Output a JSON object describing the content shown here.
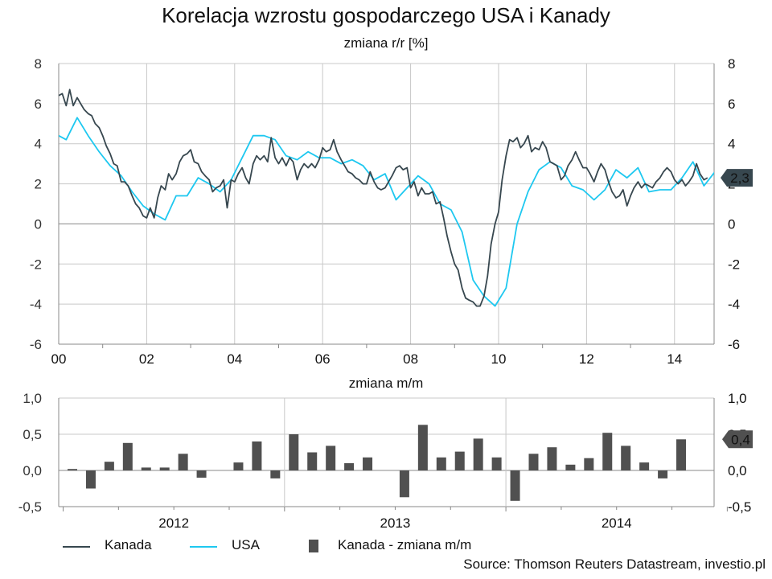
{
  "title": "Korelacja wzrostu gospodarczego USA i Kanady",
  "subtitle_top": "zmiana r/r [%]",
  "subtitle_bottom": "zmiana m/m",
  "source": "Source: Thomson Reuters Datastream, investio.pl",
  "colors": {
    "kanada": "#37474f",
    "usa": "#1ec8f0",
    "bars": "#505050",
    "grid": "#c8c8c8",
    "axis": "#888888",
    "callout": "#37474f"
  },
  "legend": [
    {
      "label": "Kanada",
      "kind": "line",
      "color": "#37474f"
    },
    {
      "label": "USA",
      "kind": "line",
      "color": "#1ec8f0"
    },
    {
      "label": "Kanada - zmiana m/m",
      "kind": "box",
      "color": "#505050"
    }
  ],
  "chart_data": [
    {
      "type": "line",
      "title": "Korelacja wzrostu gospodarczego USA i Kanady",
      "subtitle": "zmiana r/r [%]",
      "xlabel": "",
      "ylabel": "",
      "x_range": [
        2000,
        2014.9
      ],
      "ylim": [
        -6,
        8
      ],
      "y_ticks": [
        "-6",
        "-4",
        "-2",
        "0",
        "2",
        "4",
        "6",
        "8"
      ],
      "x_ticks": [
        {
          "value": 2000,
          "label": "00"
        },
        {
          "value": 2002,
          "label": "02"
        },
        {
          "value": 2004,
          "label": "04"
        },
        {
          "value": 2006,
          "label": "06"
        },
        {
          "value": 2008,
          "label": "08"
        },
        {
          "value": 2010,
          "label": "10"
        },
        {
          "value": 2012,
          "label": "12"
        },
        {
          "value": 2014,
          "label": "14"
        }
      ],
      "grid": true,
      "last_value_label": "2,3",
      "series": [
        {
          "name": "Kanada",
          "color": "#37474f",
          "points": [
            [
              2000.0,
              6.4
            ],
            [
              2000.08,
              6.5
            ],
            [
              2000.17,
              5.9
            ],
            [
              2000.25,
              6.7
            ],
            [
              2000.33,
              5.9
            ],
            [
              2000.42,
              6.3
            ],
            [
              2000.5,
              6.0
            ],
            [
              2000.58,
              5.7
            ],
            [
              2000.67,
              5.5
            ],
            [
              2000.75,
              5.4
            ],
            [
              2000.83,
              5.0
            ],
            [
              2000.92,
              4.8
            ],
            [
              2001.0,
              4.4
            ],
            [
              2001.08,
              3.9
            ],
            [
              2001.17,
              3.5
            ],
            [
              2001.25,
              3.0
            ],
            [
              2001.33,
              2.9
            ],
            [
              2001.42,
              2.1
            ],
            [
              2001.5,
              2.1
            ],
            [
              2001.58,
              1.9
            ],
            [
              2001.67,
              1.4
            ],
            [
              2001.75,
              1.0
            ],
            [
              2001.83,
              0.8
            ],
            [
              2001.92,
              0.4
            ],
            [
              2002.0,
              0.3
            ],
            [
              2002.08,
              0.8
            ],
            [
              2002.17,
              0.3
            ],
            [
              2002.25,
              1.3
            ],
            [
              2002.33,
              1.9
            ],
            [
              2002.42,
              1.7
            ],
            [
              2002.5,
              2.5
            ],
            [
              2002.58,
              2.2
            ],
            [
              2002.67,
              2.5
            ],
            [
              2002.75,
              3.1
            ],
            [
              2002.83,
              3.4
            ],
            [
              2002.92,
              3.5
            ],
            [
              2003.0,
              3.7
            ],
            [
              2003.08,
              3.1
            ],
            [
              2003.17,
              3.0
            ],
            [
              2003.25,
              2.6
            ],
            [
              2003.33,
              2.4
            ],
            [
              2003.42,
              2.2
            ],
            [
              2003.5,
              1.6
            ],
            [
              2003.58,
              1.8
            ],
            [
              2003.67,
              1.9
            ],
            [
              2003.75,
              2.2
            ],
            [
              2003.83,
              0.8
            ],
            [
              2003.92,
              2.2
            ],
            [
              2004.0,
              2.1
            ],
            [
              2004.08,
              2.5
            ],
            [
              2004.17,
              2.8
            ],
            [
              2004.25,
              2.3
            ],
            [
              2004.33,
              2.0
            ],
            [
              2004.42,
              3.0
            ],
            [
              2004.5,
              3.4
            ],
            [
              2004.58,
              3.2
            ],
            [
              2004.67,
              3.4
            ],
            [
              2004.75,
              3.1
            ],
            [
              2004.83,
              4.3
            ],
            [
              2004.92,
              3.3
            ],
            [
              2005.0,
              3.0
            ],
            [
              2005.08,
              3.3
            ],
            [
              2005.17,
              2.9
            ],
            [
              2005.25,
              3.3
            ],
            [
              2005.33,
              3.1
            ],
            [
              2005.42,
              2.2
            ],
            [
              2005.5,
              2.7
            ],
            [
              2005.58,
              3.0
            ],
            [
              2005.67,
              2.8
            ],
            [
              2005.75,
              3.0
            ],
            [
              2005.83,
              2.8
            ],
            [
              2005.92,
              3.2
            ],
            [
              2006.0,
              3.8
            ],
            [
              2006.08,
              3.6
            ],
            [
              2006.17,
              3.7
            ],
            [
              2006.25,
              4.2
            ],
            [
              2006.33,
              3.6
            ],
            [
              2006.42,
              3.2
            ],
            [
              2006.5,
              2.9
            ],
            [
              2006.58,
              2.6
            ],
            [
              2006.67,
              2.5
            ],
            [
              2006.75,
              2.3
            ],
            [
              2006.83,
              2.2
            ],
            [
              2006.92,
              2.0
            ],
            [
              2007.0,
              2.0
            ],
            [
              2007.08,
              2.6
            ],
            [
              2007.17,
              2.1
            ],
            [
              2007.25,
              1.8
            ],
            [
              2007.33,
              1.7
            ],
            [
              2007.42,
              1.8
            ],
            [
              2007.5,
              2.1
            ],
            [
              2007.58,
              2.4
            ],
            [
              2007.67,
              2.8
            ],
            [
              2007.75,
              2.9
            ],
            [
              2007.83,
              2.7
            ],
            [
              2007.92,
              2.8
            ],
            [
              2008.0,
              1.8
            ],
            [
              2008.08,
              2.1
            ],
            [
              2008.17,
              1.4
            ],
            [
              2008.25,
              1.8
            ],
            [
              2008.33,
              1.5
            ],
            [
              2008.42,
              1.5
            ],
            [
              2008.5,
              1.6
            ],
            [
              2008.58,
              1.0
            ],
            [
              2008.67,
              1.1
            ],
            [
              2008.75,
              0.3
            ],
            [
              2008.83,
              -0.6
            ],
            [
              2008.92,
              -1.4
            ],
            [
              2009.0,
              -2.0
            ],
            [
              2009.08,
              -2.3
            ],
            [
              2009.17,
              -3.2
            ],
            [
              2009.25,
              -3.7
            ],
            [
              2009.33,
              -3.8
            ],
            [
              2009.42,
              -3.9
            ],
            [
              2009.5,
              -4.1
            ],
            [
              2009.58,
              -4.1
            ],
            [
              2009.67,
              -3.6
            ],
            [
              2009.75,
              -2.6
            ],
            [
              2009.83,
              -1.0
            ],
            [
              2009.92,
              0.0
            ],
            [
              2010.0,
              0.6
            ],
            [
              2010.08,
              2.2
            ],
            [
              2010.17,
              3.4
            ],
            [
              2010.25,
              4.2
            ],
            [
              2010.33,
              4.1
            ],
            [
              2010.42,
              4.3
            ],
            [
              2010.5,
              3.8
            ],
            [
              2010.58,
              4.0
            ],
            [
              2010.67,
              4.4
            ],
            [
              2010.75,
              3.6
            ],
            [
              2010.83,
              3.8
            ],
            [
              2010.92,
              3.7
            ],
            [
              2011.0,
              4.1
            ],
            [
              2011.08,
              3.8
            ],
            [
              2011.17,
              3.1
            ],
            [
              2011.25,
              3.0
            ],
            [
              2011.33,
              2.9
            ],
            [
              2011.42,
              2.2
            ],
            [
              2011.5,
              2.4
            ],
            [
              2011.58,
              2.9
            ],
            [
              2011.67,
              3.2
            ],
            [
              2011.75,
              3.6
            ],
            [
              2011.83,
              3.2
            ],
            [
              2011.92,
              2.8
            ],
            [
              2012.0,
              2.8
            ],
            [
              2012.08,
              2.5
            ],
            [
              2012.17,
              2.1
            ],
            [
              2012.25,
              2.6
            ],
            [
              2012.33,
              3.0
            ],
            [
              2012.42,
              2.7
            ],
            [
              2012.5,
              2.1
            ],
            [
              2012.58,
              1.6
            ],
            [
              2012.67,
              1.3
            ],
            [
              2012.75,
              1.4
            ],
            [
              2012.83,
              1.7
            ],
            [
              2012.92,
              0.9
            ],
            [
              2013.0,
              1.4
            ],
            [
              2013.08,
              1.8
            ],
            [
              2013.17,
              2.1
            ],
            [
              2013.25,
              1.8
            ],
            [
              2013.33,
              2.0
            ],
            [
              2013.42,
              1.9
            ],
            [
              2013.5,
              1.8
            ],
            [
              2013.58,
              2.1
            ],
            [
              2013.67,
              2.3
            ],
            [
              2013.75,
              2.6
            ],
            [
              2013.83,
              2.8
            ],
            [
              2013.92,
              2.6
            ],
            [
              2014.0,
              2.2
            ],
            [
              2014.08,
              2.0
            ],
            [
              2014.17,
              2.2
            ],
            [
              2014.25,
              1.9
            ],
            [
              2014.33,
              2.1
            ],
            [
              2014.42,
              2.4
            ],
            [
              2014.5,
              3.0
            ],
            [
              2014.58,
              2.5
            ],
            [
              2014.67,
              2.2
            ],
            [
              2014.75,
              2.3
            ]
          ]
        },
        {
          "name": "USA",
          "color": "#1ec8f0",
          "points": [
            [
              2000.0,
              4.4
            ],
            [
              2000.17,
              4.2
            ],
            [
              2000.42,
              5.3
            ],
            [
              2000.67,
              4.4
            ],
            [
              2000.92,
              3.6
            ],
            [
              2001.17,
              2.9
            ],
            [
              2001.42,
              2.4
            ],
            [
              2001.67,
              1.6
            ],
            [
              2001.92,
              0.9
            ],
            [
              2002.17,
              0.5
            ],
            [
              2002.42,
              0.2
            ],
            [
              2002.67,
              1.4
            ],
            [
              2002.92,
              1.4
            ],
            [
              2003.17,
              2.3
            ],
            [
              2003.42,
              2.0
            ],
            [
              2003.67,
              1.6
            ],
            [
              2003.92,
              2.2
            ],
            [
              2004.17,
              3.3
            ],
            [
              2004.42,
              4.4
            ],
            [
              2004.67,
              4.4
            ],
            [
              2004.92,
              4.2
            ],
            [
              2005.17,
              3.4
            ],
            [
              2005.42,
              3.2
            ],
            [
              2005.67,
              3.6
            ],
            [
              2005.92,
              3.3
            ],
            [
              2006.17,
              3.3
            ],
            [
              2006.42,
              3.0
            ],
            [
              2006.67,
              3.2
            ],
            [
              2006.92,
              2.9
            ],
            [
              2007.17,
              2.2
            ],
            [
              2007.42,
              2.5
            ],
            [
              2007.67,
              1.2
            ],
            [
              2007.92,
              1.8
            ],
            [
              2008.17,
              2.4
            ],
            [
              2008.42,
              2.0
            ],
            [
              2008.67,
              1.0
            ],
            [
              2008.92,
              0.7
            ],
            [
              2009.17,
              -0.4
            ],
            [
              2009.42,
              -2.8
            ],
            [
              2009.67,
              -3.6
            ],
            [
              2009.92,
              -4.1
            ],
            [
              2010.17,
              -3.2
            ],
            [
              2010.42,
              0.0
            ],
            [
              2010.67,
              1.6
            ],
            [
              2010.92,
              2.7
            ],
            [
              2011.17,
              3.1
            ],
            [
              2011.42,
              2.8
            ],
            [
              2011.67,
              1.9
            ],
            [
              2011.92,
              1.7
            ],
            [
              2012.17,
              1.2
            ],
            [
              2012.42,
              1.7
            ],
            [
              2012.67,
              2.7
            ],
            [
              2012.92,
              2.3
            ],
            [
              2013.17,
              2.8
            ],
            [
              2013.42,
              1.6
            ],
            [
              2013.67,
              1.7
            ],
            [
              2013.92,
              1.7
            ],
            [
              2014.17,
              2.3
            ],
            [
              2014.42,
              3.1
            ],
            [
              2014.67,
              1.9
            ],
            [
              2014.92,
              2.6
            ],
            [
              2015.17,
              2.5
            ],
            [
              2015.42,
              2.3
            ]
          ]
        }
      ]
    },
    {
      "type": "bar",
      "title": "",
      "subtitle": "zmiana m/m",
      "series_name": "Kanada - zmiana m/m",
      "color": "#505050",
      "ylim": [
        -0.5,
        1.0
      ],
      "y_ticks": [
        "-0,5",
        "0,0",
        "0,5",
        "1,0"
      ],
      "x_ticks": [
        "2012",
        "2013",
        "2014"
      ],
      "last_value_label": "0,4",
      "values": [
        0.02,
        -0.25,
        0.12,
        0.38,
        0.04,
        0.04,
        0.23,
        -0.1,
        0.0,
        0.11,
        0.4,
        -0.11,
        0.5,
        0.25,
        0.34,
        0.1,
        0.18,
        0.0,
        -0.37,
        0.63,
        0.18,
        0.26,
        0.44,
        0.18,
        -0.42,
        0.23,
        0.32,
        0.08,
        0.17,
        0.52,
        0.34,
        0.11,
        -0.11,
        0.43
      ]
    }
  ]
}
